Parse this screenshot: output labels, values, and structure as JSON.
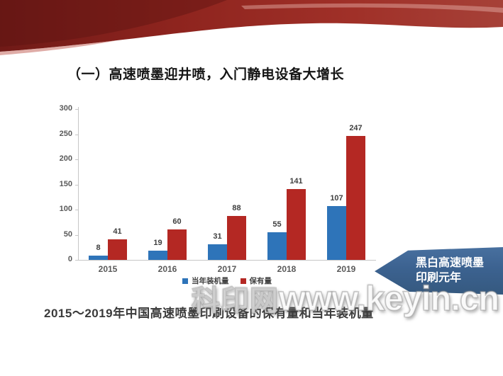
{
  "header": {
    "title": "（一）高速喷墨迎井喷，入门静电设备大增长"
  },
  "caption": "2015～2019年中国高速喷墨印刷设备的保有量和当年装机量",
  "watermark": {
    "cjk": "科印网",
    "latin": "www.keyin.cn"
  },
  "callout": {
    "line1": "黑白高速喷墨",
    "line2": "印刷元年",
    "color": "#3c6290"
  },
  "colors": {
    "banner_red_dark": "#701A17",
    "banner_red_mid": "#9B2B23",
    "banner_red_light": "#A64138",
    "bar_blue": "#2E74B9",
    "bar_red": "#B42823",
    "axis_gray": "#c6c6c6",
    "tick_label_gray": "#595959"
  },
  "chart_data": {
    "type": "bar",
    "title": "",
    "xlabel": "",
    "ylabel": "",
    "categories": [
      "2015",
      "2016",
      "2017",
      "2018",
      "2019"
    ],
    "series": [
      {
        "name": "当年装机量",
        "color": "#2E74B9",
        "values": [
          8,
          19,
          31,
          55,
          107
        ]
      },
      {
        "name": "保有量",
        "color": "#B42823",
        "values": [
          41,
          60,
          88,
          141,
          247
        ]
      }
    ],
    "ylim": [
      0,
      300
    ],
    "ytick_step": 50,
    "grid": false,
    "legend_position": "bottom",
    "data_labels": true
  }
}
